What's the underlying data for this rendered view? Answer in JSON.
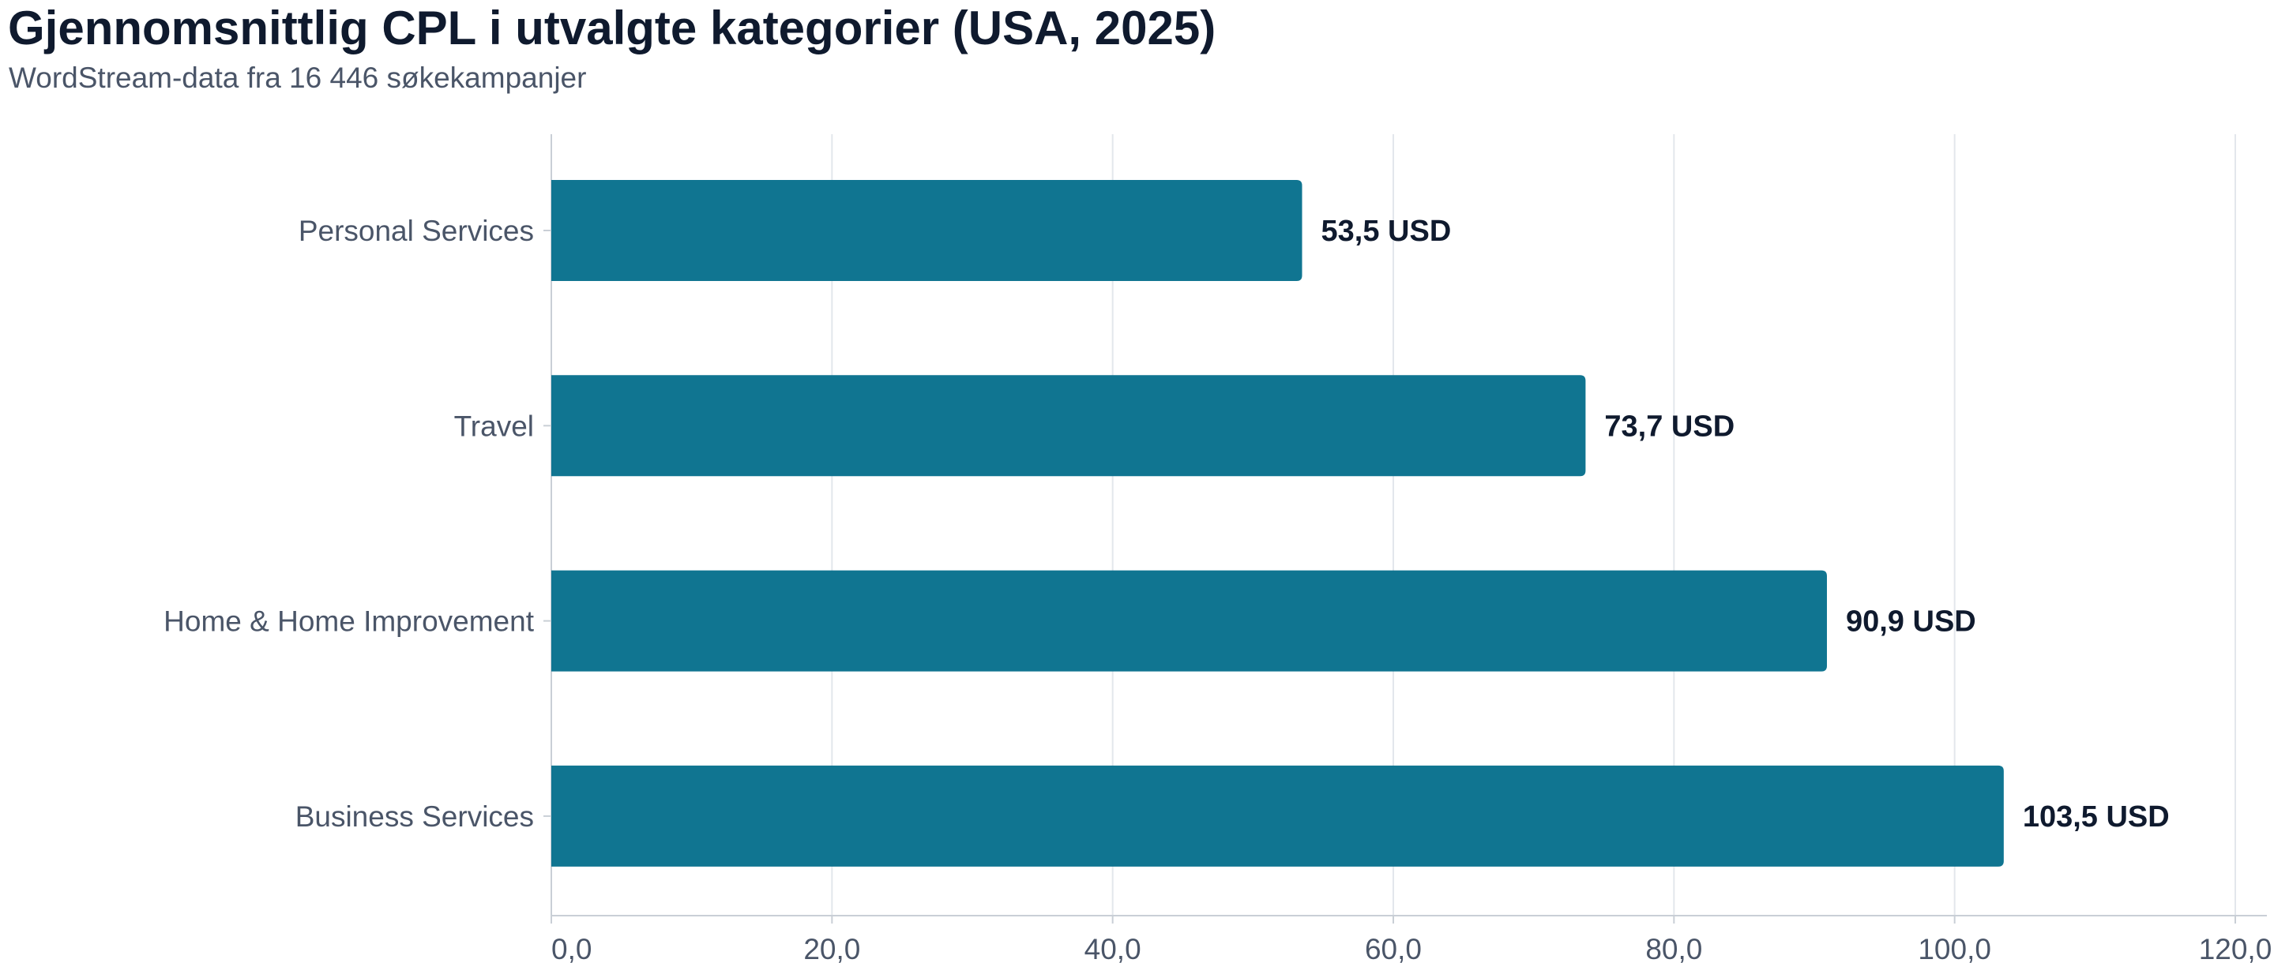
{
  "header": {
    "title": "Gjennomsnittlig CPL i utvalgte kategorier (USA, 2025)",
    "subtitle": "WordStream-data fra 16 446 søkekampanjer"
  },
  "colors": {
    "bar": "#107591",
    "grid": "#e3e7ec",
    "axis": "#c9cfd6"
  },
  "chart_data": {
    "type": "bar",
    "orientation": "horizontal",
    "title": "Gjennomsnittlig CPL i utvalgte kategorier (USA, 2025)",
    "subtitle": "WordStream-data fra 16 446 søkekampanjer",
    "categories": [
      "Personal Services",
      "Travel",
      "Home & Home Improvement",
      "Business Services"
    ],
    "values": [
      53.5,
      73.7,
      90.9,
      103.5
    ],
    "value_labels": [
      "53,5 USD",
      "73,7 USD",
      "90,9 USD",
      "103,5 USD"
    ],
    "xlim": [
      0,
      120
    ],
    "xticks": [
      0,
      20,
      40,
      60,
      80,
      100,
      120
    ],
    "xtick_labels": [
      "0,0",
      "20,0",
      "40,0",
      "60,0",
      "80,0",
      "100,0",
      "120,0"
    ],
    "xlabel": "",
    "ylabel": "",
    "grid": true,
    "legend": "none"
  }
}
